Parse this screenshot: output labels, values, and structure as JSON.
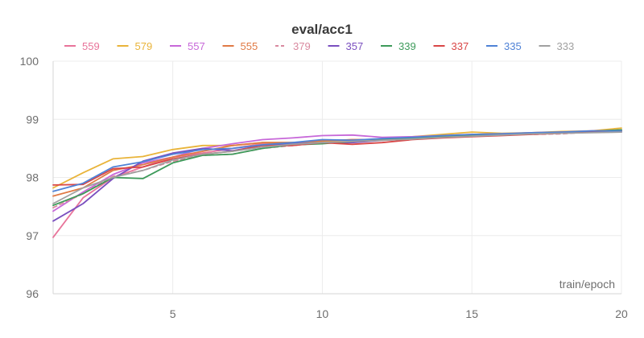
{
  "chart_data": {
    "type": "line",
    "title": "eval/acc1",
    "xlabel": "train/epoch",
    "ylabel": "",
    "xlim": [
      1,
      20
    ],
    "ylim": [
      96,
      100
    ],
    "xticks": [
      5,
      10,
      15,
      20
    ],
    "yticks": [
      96,
      97,
      98,
      99,
      100
    ],
    "grid": true,
    "legend_position": "top",
    "x": [
      1,
      2,
      3,
      4,
      5,
      6,
      7,
      8,
      9,
      10,
      11,
      12,
      13,
      14,
      15,
      16,
      17,
      18,
      19,
      20
    ],
    "series": [
      {
        "name": "559",
        "color": "#e8749a",
        "dashed": false,
        "values": [
          96.97,
          97.65,
          98.0,
          98.18,
          98.35,
          98.42,
          98.5,
          98.58,
          98.6,
          98.62,
          98.65,
          98.65,
          98.68,
          98.7,
          98.72,
          98.73,
          98.75,
          98.77,
          98.79,
          98.8
        ]
      },
      {
        "name": "579",
        "color": "#e9b43a",
        "dashed": false,
        "values": [
          97.82,
          98.08,
          98.32,
          98.36,
          98.48,
          98.55,
          98.55,
          98.6,
          98.6,
          98.62,
          98.64,
          98.66,
          98.7,
          98.74,
          98.78,
          98.76,
          98.77,
          98.79,
          98.8,
          98.85
        ]
      },
      {
        "name": "557",
        "color": "#c768d9",
        "dashed": false,
        "values": [
          97.42,
          97.75,
          98.05,
          98.25,
          98.35,
          98.5,
          98.58,
          98.65,
          98.68,
          98.72,
          98.73,
          98.69,
          98.7,
          98.72,
          98.74,
          98.75,
          98.77,
          98.78,
          98.8,
          98.8
        ]
      },
      {
        "name": "555",
        "color": "#e07a45",
        "dashed": false,
        "values": [
          97.68,
          97.82,
          98.12,
          98.22,
          98.35,
          98.45,
          98.55,
          98.6,
          98.6,
          98.63,
          98.65,
          98.65,
          98.67,
          98.7,
          98.74,
          98.74,
          98.76,
          98.78,
          98.79,
          98.82
        ]
      },
      {
        "name": "379",
        "color": "#d98aa0",
        "dashed": true,
        "values": [
          97.48,
          97.72,
          98.02,
          98.12,
          98.28,
          98.38,
          98.4,
          98.5,
          98.55,
          98.6,
          98.62,
          98.64,
          98.66,
          98.7,
          98.72,
          98.74,
          98.74,
          98.75,
          98.78,
          98.8
        ]
      },
      {
        "name": "357",
        "color": "#7a4fbf",
        "dashed": false,
        "values": [
          97.25,
          97.55,
          97.98,
          98.28,
          98.42,
          98.5,
          98.46,
          98.55,
          98.58,
          98.6,
          98.6,
          98.64,
          98.67,
          98.7,
          98.72,
          98.73,
          98.75,
          98.77,
          98.79,
          98.78
        ]
      },
      {
        "name": "339",
        "color": "#3d9a5a",
        "dashed": false,
        "values": [
          97.52,
          97.72,
          98.0,
          97.98,
          98.25,
          98.38,
          98.4,
          98.5,
          98.56,
          98.58,
          98.62,
          98.65,
          98.68,
          98.7,
          98.73,
          98.74,
          98.76,
          98.77,
          98.79,
          98.82
        ]
      },
      {
        "name": "337",
        "color": "#d94646",
        "dashed": false,
        "values": [
          97.87,
          97.88,
          98.15,
          98.18,
          98.32,
          98.4,
          98.45,
          98.55,
          98.55,
          98.6,
          98.57,
          98.6,
          98.65,
          98.68,
          98.7,
          98.72,
          98.74,
          98.76,
          98.78,
          98.8
        ]
      },
      {
        "name": "335",
        "color": "#4f82d6",
        "dashed": false,
        "values": [
          97.76,
          97.9,
          98.18,
          98.27,
          98.4,
          98.48,
          98.5,
          98.56,
          98.6,
          98.65,
          98.64,
          98.67,
          98.69,
          98.72,
          98.74,
          98.75,
          98.77,
          98.78,
          98.8,
          98.8
        ]
      },
      {
        "name": "333",
        "color": "#a0a0a0",
        "dashed": false,
        "values": [
          97.55,
          97.82,
          98.0,
          98.12,
          98.3,
          98.4,
          98.45,
          98.52,
          98.57,
          98.6,
          98.62,
          98.64,
          98.66,
          98.69,
          98.71,
          98.73,
          98.75,
          98.76,
          98.77,
          98.78
        ]
      }
    ]
  }
}
